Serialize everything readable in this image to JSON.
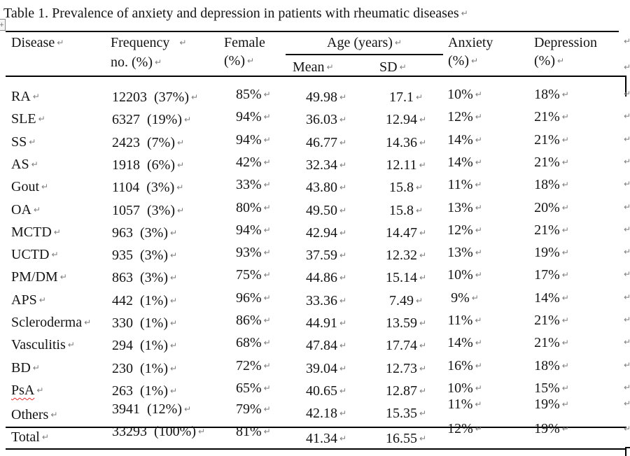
{
  "document": {
    "title": "Table 1. Prevalence of anxiety and depression in patients with rheumatic diseases",
    "formatting_marks": {
      "paragraph_mark": "↵",
      "table_handle": "+"
    },
    "spellcheck_flagged_disease": "PsA"
  },
  "table": {
    "header": {
      "disease": "Disease",
      "frequency_line1": "Frequency",
      "frequency_line2": "no. (%)",
      "female_line1": "Female",
      "female_line2": "(%)",
      "age_group": "Age (years)",
      "mean": "Mean",
      "sd": "SD",
      "anxiety_line1": "Anxiety",
      "anxiety_line2": "(%)",
      "depression_line1": "Depression",
      "depression_line2": "(%)"
    },
    "rows": [
      {
        "disease": "RA",
        "frequency": "12203  (37%)",
        "female": "85%",
        "mean": "49.98",
        "sd": "17.1",
        "anxiety": "10%",
        "depression": "18%"
      },
      {
        "disease": "SLE",
        "frequency": "6327  (19%)",
        "female": "94%",
        "mean": "36.03",
        "sd": "12.94",
        "anxiety": "12%",
        "depression": "21%"
      },
      {
        "disease": "SS",
        "frequency": "2423  (7%)",
        "female": "94%",
        "mean": "46.77",
        "sd": "14.36",
        "anxiety": "14%",
        "depression": "21%"
      },
      {
        "disease": "AS",
        "frequency": "1918  (6%)",
        "female": "42%",
        "mean": "32.34",
        "sd": "12.11",
        "anxiety": "14%",
        "depression": "21%"
      },
      {
        "disease": "Gout",
        "frequency": "1104  (3%)",
        "female": "33%",
        "mean": "43.80",
        "sd": "15.8",
        "anxiety": "11%",
        "depression": "18%"
      },
      {
        "disease": "OA",
        "frequency": "1057  (3%)",
        "female": "80%",
        "mean": "49.50",
        "sd": "15.8",
        "anxiety": "13%",
        "depression": "20%"
      },
      {
        "disease": "MCTD",
        "frequency": "963  (3%)",
        "female": "94%",
        "mean": "42.94",
        "sd": "14.47",
        "anxiety": "12%",
        "depression": "21%"
      },
      {
        "disease": "UCTD",
        "frequency": "935  (3%)",
        "female": "93%",
        "mean": "37.59",
        "sd": "12.32",
        "anxiety": "13%",
        "depression": "19%"
      },
      {
        "disease": "PM/DM",
        "frequency": "863  (3%)",
        "female": "75%",
        "mean": "44.86",
        "sd": "15.14",
        "anxiety": "10%",
        "depression": "17%"
      },
      {
        "disease": "APS",
        "frequency": "442  (1%)",
        "female": "96%",
        "mean": "33.36",
        "sd": "7.49",
        "anxiety": "9%",
        "depression": "14%"
      },
      {
        "disease": "Scleroderma",
        "frequency": "330  (1%)",
        "female": "86%",
        "mean": "44.91",
        "sd": "13.59",
        "anxiety": "11%",
        "depression": "21%"
      },
      {
        "disease": "Vasculitis",
        "frequency": "294  (1%)",
        "female": "68%",
        "mean": "47.84",
        "sd": "17.74",
        "anxiety": "14%",
        "depression": "21%"
      },
      {
        "disease": "BD",
        "frequency": "230  (1%)",
        "female": "72%",
        "mean": "39.04",
        "sd": "12.73",
        "anxiety": "16%",
        "depression": "18%"
      },
      {
        "disease": "PsA",
        "frequency": "263  (1%)",
        "female": "65%",
        "mean": "40.65",
        "sd": "12.87",
        "anxiety": "10%",
        "depression": "15%"
      },
      {
        "disease": "Others",
        "frequency": "3941  (12%)",
        "female": "79%",
        "mean": "42.18",
        "sd": "15.35",
        "anxiety": "11%",
        "depression": "19%"
      }
    ],
    "total_row": {
      "disease": "Total",
      "frequency": "33293  (100%)",
      "female": "81%",
      "mean": "41.34",
      "sd": "16.55",
      "anxiety": "12%",
      "depression": "19%"
    }
  },
  "colors": {
    "text": "#141414",
    "formatting_mark": "#7d7d7d",
    "border": "#000000",
    "spellcheck_underline": "#e02b2b"
  }
}
